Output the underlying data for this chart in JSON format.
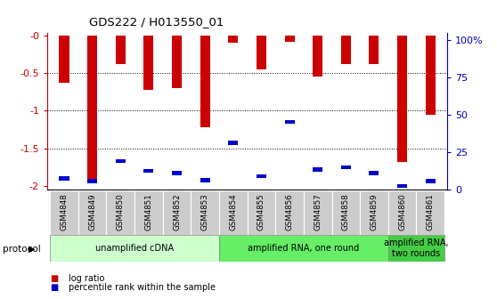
{
  "title": "GDS222 / H013550_01",
  "samples": [
    "GSM4848",
    "GSM4849",
    "GSM4850",
    "GSM4851",
    "GSM4852",
    "GSM4853",
    "GSM4854",
    "GSM4855",
    "GSM4856",
    "GSM4857",
    "GSM4858",
    "GSM4859",
    "GSM4860",
    "GSM4861"
  ],
  "log_ratio": [
    -0.63,
    -1.93,
    -0.38,
    -0.73,
    -0.7,
    -1.22,
    -0.1,
    -0.45,
    -0.09,
    -0.55,
    -0.38,
    -0.38,
    -1.68,
    -1.05
  ],
  "percentile_val": [
    -1.9,
    -1.93,
    -1.67,
    -1.8,
    -1.83,
    -1.92,
    -1.43,
    -1.87,
    -1.15,
    -1.78,
    -1.75,
    -1.83,
    -2.0,
    -1.93
  ],
  "protocols": [
    {
      "label": "unamplified cDNA",
      "start": 0,
      "end": 5,
      "color": "#ccffcc"
    },
    {
      "label": "amplified RNA, one round",
      "start": 6,
      "end": 11,
      "color": "#66ee66"
    },
    {
      "label": "amplified RNA,\ntwo rounds",
      "start": 12,
      "end": 13,
      "color": "#44cc44"
    }
  ],
  "ylim_left": [
    -2.05,
    0.03
  ],
  "yticks_left": [
    -2.0,
    -1.5,
    -1.0,
    -0.5,
    0.0
  ],
  "ytick_labels_left": [
    "-2",
    "-1.5",
    "-1",
    "-0.5",
    "-0"
  ],
  "ylim_right": [
    0,
    105
  ],
  "yticks_right": [
    0,
    25,
    50,
    75,
    100
  ],
  "ytick_labels_right": [
    "0",
    "25",
    "50",
    "75",
    "100%"
  ],
  "bar_color": "#cc0000",
  "percentile_color": "#0000cc",
  "bar_width": 0.35,
  "blue_bar_height": 0.055,
  "legend_items": [
    {
      "label": "log ratio",
      "color": "#cc0000"
    },
    {
      "label": "percentile rank within the sample",
      "color": "#0000cc"
    }
  ],
  "grid_yticks": [
    -1.5,
    -1.0,
    -0.5
  ],
  "sample_bg_color": "#cccccc",
  "left_color": "#cc0000",
  "right_color": "#0000bb"
}
